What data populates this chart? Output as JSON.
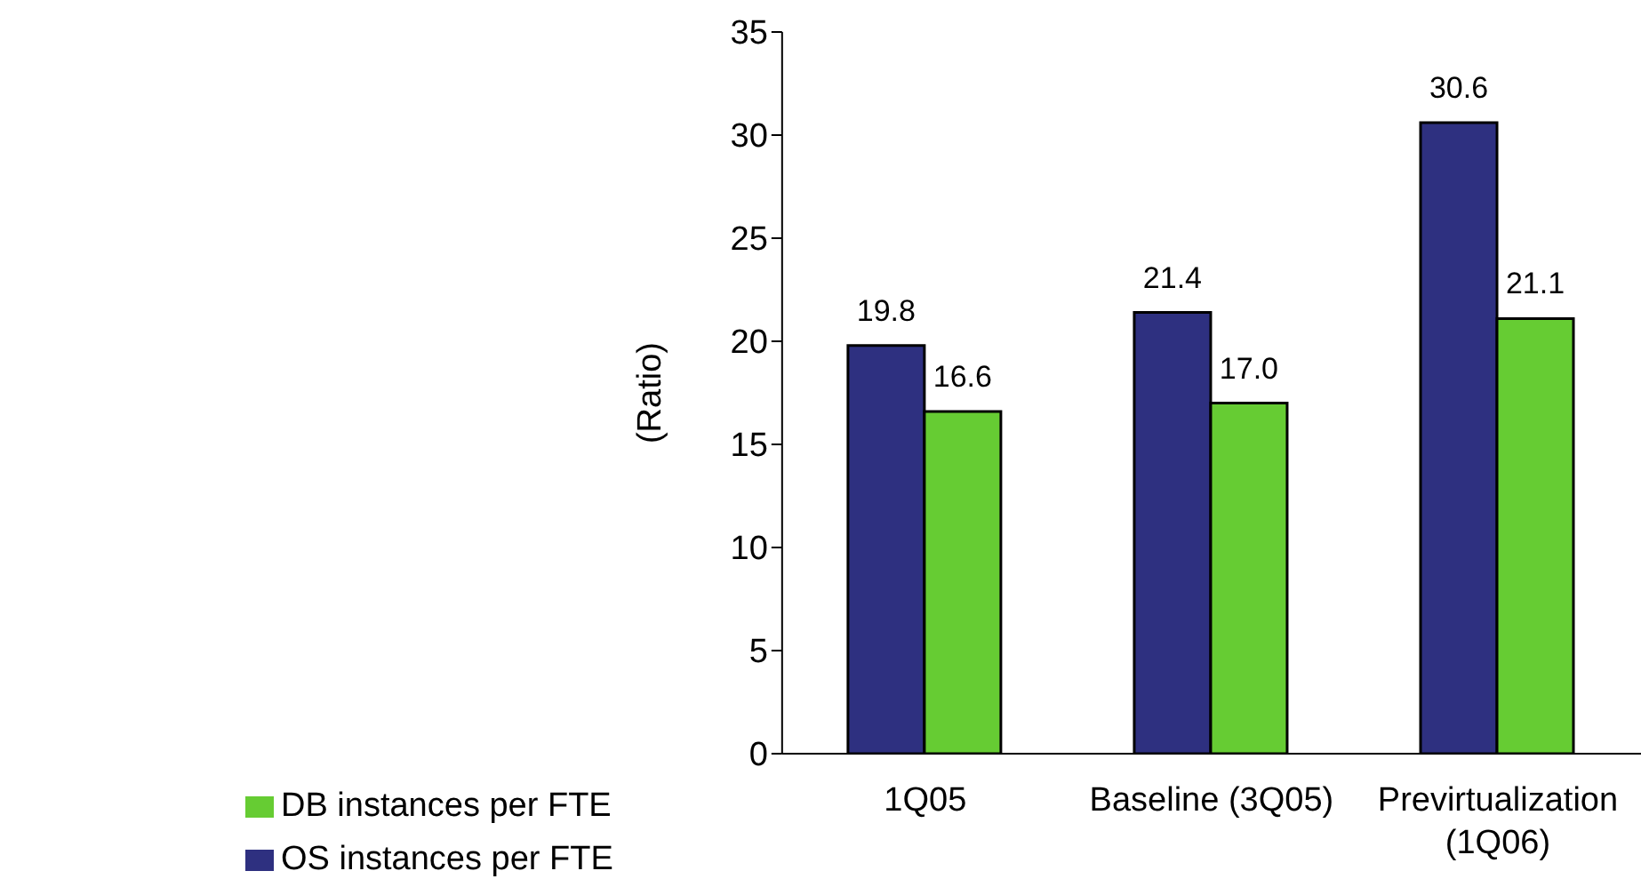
{
  "chart_data": {
    "type": "bar",
    "ylabel": "(Ratio)",
    "categories": [
      "1Q05",
      "Baseline (3Q05)",
      "Previrtualization (1Q06)"
    ],
    "series": [
      {
        "name": "OS instances per FTE",
        "color": "#2e3080",
        "values": [
          19.8,
          21.4,
          30.6
        ],
        "value_labels": [
          "19.8",
          "21.4",
          "30.6"
        ]
      },
      {
        "name": "DB instances per FTE",
        "color": "#66cc33",
        "values": [
          16.6,
          17.0,
          21.1
        ],
        "value_labels": [
          "16.6",
          "17.0",
          "21.1"
        ]
      }
    ],
    "ylim": [
      0,
      35
    ],
    "yticks": [
      0,
      5,
      10,
      15,
      20,
      25,
      30,
      35
    ],
    "grid": false,
    "legend": "bottom left"
  }
}
